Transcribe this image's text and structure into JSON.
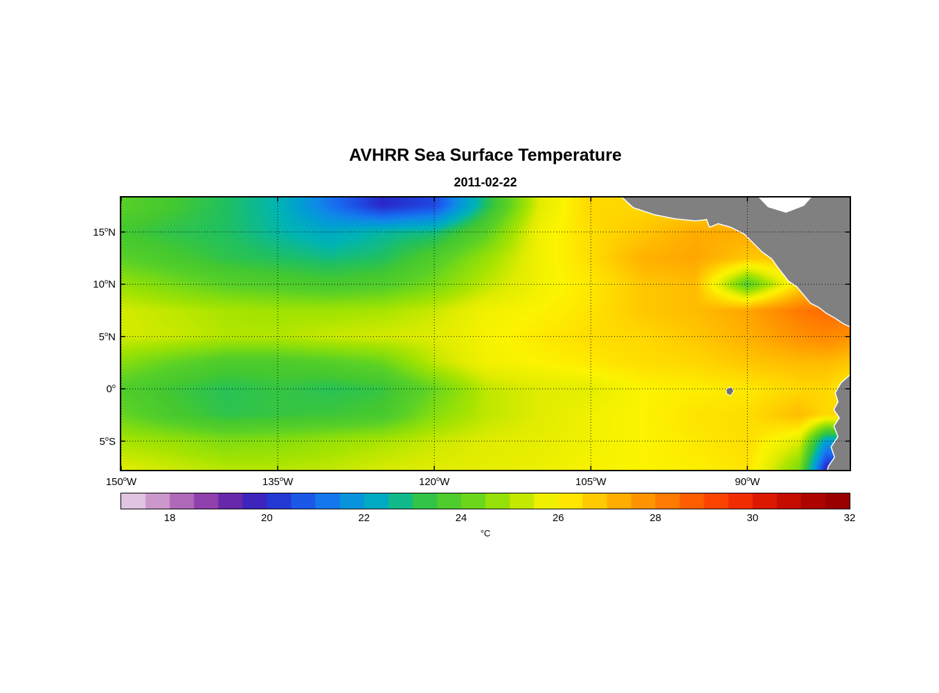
{
  "figure": {
    "title": "AVHRR Sea Surface Temperature",
    "subtitle": "2011-02-22"
  },
  "chart_data": {
    "type": "heatmap",
    "title": "AVHRR Sea Surface Temperature",
    "date": "2011-02-22",
    "lon_range": [
      -150,
      -80.2
    ],
    "lat_range": [
      -7.75,
      18.3
    ],
    "x_axis": {
      "ticks": [
        {
          "lon": -150,
          "deg": "150",
          "hemi": "W"
        },
        {
          "lon": -135,
          "deg": "135",
          "hemi": "W"
        },
        {
          "lon": -120,
          "deg": "120",
          "hemi": "W"
        },
        {
          "lon": -105,
          "deg": "105",
          "hemi": "W"
        },
        {
          "lon": -90,
          "deg": "90",
          "hemi": "W"
        }
      ]
    },
    "y_axis": {
      "ticks": [
        {
          "lat": 15,
          "deg": "15",
          "hemi": "N"
        },
        {
          "lat": 10,
          "deg": "10",
          "hemi": "N"
        },
        {
          "lat": 5,
          "deg": "5",
          "hemi": "N"
        },
        {
          "lat": 0,
          "deg": "0",
          "hemi": ""
        },
        {
          "lat": -5,
          "deg": "5",
          "hemi": "S"
        }
      ]
    },
    "grid": {
      "lons": [
        -150,
        -145,
        -140,
        -135,
        -130,
        -125,
        -120,
        -115,
        -110,
        -105,
        -100,
        -95,
        -90,
        -85,
        -82.5,
        -80
      ],
      "lats": [
        17.5,
        15,
        12.5,
        10,
        7.5,
        5,
        2.5,
        0,
        -2.5,
        -5,
        -7.5
      ],
      "sst_c": [
        [
          24,
          23.5,
          23,
          22.5,
          21.2,
          20,
          20.5,
          23,
          25.5,
          26.5,
          null,
          null,
          null,
          null,
          null,
          null
        ],
        [
          23.5,
          23.2,
          23,
          22.6,
          22.2,
          22.6,
          22.8,
          24,
          25.8,
          26.4,
          26.8,
          27.3,
          null,
          null,
          null,
          null
        ],
        [
          24,
          23.6,
          23.2,
          23,
          22.8,
          23,
          23.8,
          24.8,
          25.8,
          26.4,
          27.2,
          27.4,
          26.8,
          null,
          null,
          null
        ],
        [
          24.8,
          24.4,
          24,
          23.8,
          23.6,
          23.8,
          24.4,
          25.2,
          25.8,
          26.2,
          26.8,
          27,
          23.8,
          26.5,
          null,
          null
        ],
        [
          25.4,
          25.2,
          25,
          24.9,
          24.9,
          25,
          25.3,
          25.8,
          26,
          26.3,
          26.8,
          27,
          27.4,
          28.3,
          28.5,
          28.5
        ],
        [
          25.4,
          25.3,
          25.1,
          25.1,
          25.3,
          25.4,
          25.5,
          25.9,
          26.2,
          26.4,
          26.5,
          26.8,
          27.2,
          27.8,
          28,
          27.8
        ],
        [
          24.6,
          24.1,
          23.7,
          23.7,
          23.9,
          24.2,
          25.2,
          25.8,
          26,
          26.2,
          26.4,
          26.5,
          26.8,
          27,
          27,
          26.8
        ],
        [
          23.8,
          23.4,
          23.1,
          23.3,
          23.1,
          23.3,
          24.2,
          25.2,
          25.5,
          25.6,
          26,
          26.1,
          26.2,
          26.5,
          26.5,
          26
        ],
        [
          24.2,
          23.6,
          23.2,
          23.3,
          23.4,
          23.6,
          24.6,
          25.2,
          25.5,
          25.8,
          26,
          26.3,
          26.4,
          27,
          26.5,
          null
        ],
        [
          25,
          24.8,
          24.5,
          24.6,
          24.8,
          25,
          25.3,
          25.5,
          25.6,
          25.8,
          26,
          26.2,
          26.4,
          25.5,
          22,
          null
        ],
        [
          25.5,
          25.3,
          25.1,
          25.1,
          25.2,
          25.4,
          25.5,
          25.6,
          25.7,
          25.9,
          26,
          26.1,
          26.3,
          24.5,
          20,
          null
        ]
      ]
    },
    "colorbar": {
      "min": 17,
      "max": 32,
      "step": 0.5,
      "ticks": [
        18,
        20,
        22,
        24,
        26,
        28,
        30,
        32
      ],
      "units": "°C",
      "stops": [
        {
          "t": 17.0,
          "c": "#E8D8E8"
        },
        {
          "t": 17.5,
          "c": "#D8B0D8"
        },
        {
          "t": 18.0,
          "c": "#C080C0"
        },
        {
          "t": 18.5,
          "c": "#A050B0"
        },
        {
          "t": 19.0,
          "c": "#8030A8"
        },
        {
          "t": 19.5,
          "c": "#5020B0"
        },
        {
          "t": 20.0,
          "c": "#2828C8"
        },
        {
          "t": 20.5,
          "c": "#2048E0"
        },
        {
          "t": 21.0,
          "c": "#1868F0"
        },
        {
          "t": 21.5,
          "c": "#1088E8"
        },
        {
          "t": 22.0,
          "c": "#00A0D0"
        },
        {
          "t": 22.5,
          "c": "#00B4B4"
        },
        {
          "t": 23.0,
          "c": "#20C060"
        },
        {
          "t": 23.5,
          "c": "#44C830"
        },
        {
          "t": 24.0,
          "c": "#58D028"
        },
        {
          "t": 24.5,
          "c": "#80DC10"
        },
        {
          "t": 25.0,
          "c": "#A8E400"
        },
        {
          "t": 25.5,
          "c": "#E0EC00"
        },
        {
          "t": 26.0,
          "c": "#FCF400"
        },
        {
          "t": 26.5,
          "c": "#FFD800"
        },
        {
          "t": 27.0,
          "c": "#FFBC00"
        },
        {
          "t": 27.5,
          "c": "#FFA000"
        },
        {
          "t": 28.0,
          "c": "#FF8800"
        },
        {
          "t": 28.5,
          "c": "#FF6C00"
        },
        {
          "t": 29.0,
          "c": "#FF5000"
        },
        {
          "t": 29.5,
          "c": "#F83800"
        },
        {
          "t": 30.0,
          "c": "#E82000"
        },
        {
          "t": 30.5,
          "c": "#D01000"
        },
        {
          "t": 31.0,
          "c": "#B80800"
        },
        {
          "t": 31.5,
          "c": "#A40000"
        },
        {
          "t": 32.0,
          "c": "#900000"
        }
      ]
    },
    "land": {
      "color": "#808080",
      "coast_gap_color": "#FFFFFF",
      "polygons": {
        "central_america": [
          [
            718,
            -6
          ],
          [
            740,
            14
          ],
          [
            770,
            24
          ],
          [
            800,
            30
          ],
          [
            830,
            33
          ],
          [
            846,
            31
          ],
          [
            850,
            42
          ],
          [
            862,
            37
          ],
          [
            880,
            42
          ],
          [
            900,
            52
          ],
          [
            916,
            68
          ],
          [
            926,
            78
          ],
          [
            940,
            88
          ],
          [
            950,
            102
          ],
          [
            958,
            112
          ],
          [
            964,
            120
          ],
          [
            976,
            128
          ],
          [
            986,
            140
          ],
          [
            996,
            152
          ],
          [
            1008,
            158
          ],
          [
            1018,
            166
          ],
          [
            1032,
            174
          ],
          [
            1044,
            182
          ],
          [
            1058,
            188
          ],
          [
            1058,
            -6
          ]
        ],
        "caribbean_mask": [
          [
            915,
            -6
          ],
          [
            1002,
            -6
          ],
          [
            986,
            12
          ],
          [
            960,
            22
          ],
          [
            934,
            14
          ]
        ],
        "south_america": [
          [
            1058,
            252
          ],
          [
            1040,
            268
          ],
          [
            1032,
            282
          ],
          [
            1036,
            295
          ],
          [
            1030,
            306
          ],
          [
            1038,
            318
          ],
          [
            1030,
            330
          ],
          [
            1036,
            345
          ],
          [
            1026,
            360
          ],
          [
            1031,
            375
          ],
          [
            1022,
            388
          ],
          [
            1019,
            399
          ],
          [
            1058,
            399
          ]
        ],
        "galapagos": [
          [
            874,
            277
          ],
          [
            881,
            274
          ],
          [
            884,
            279
          ],
          [
            880,
            285
          ],
          [
            875,
            283
          ]
        ]
      }
    }
  }
}
